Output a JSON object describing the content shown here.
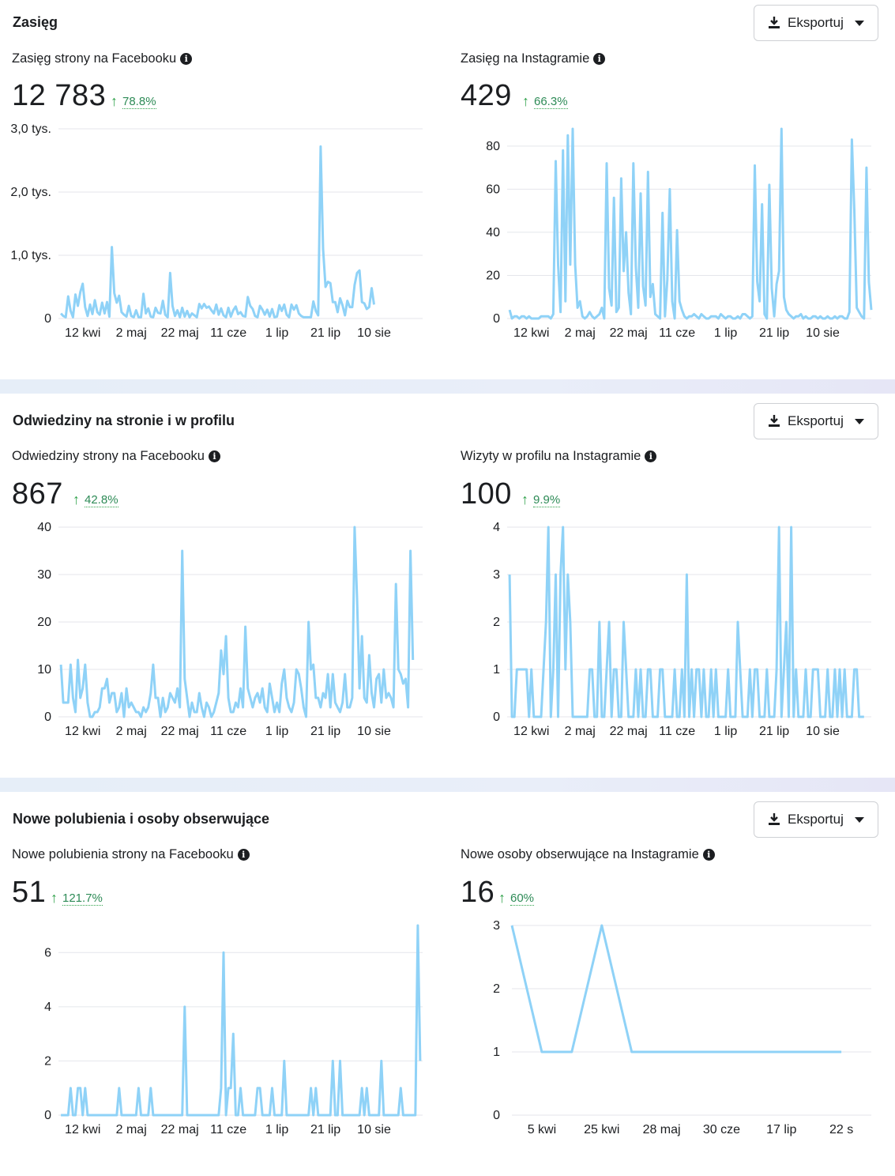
{
  "colors": {
    "line": "#8fd2f7",
    "grid": "#e4e6eb",
    "up": "#31a24c"
  },
  "icons": {
    "export": "download-icon",
    "info": "info-icon",
    "caret": "caret-down-icon",
    "trend": "arrow-up-icon"
  },
  "sections": [
    {
      "title": "Zasięg",
      "export_label": "Eksportuj",
      "metrics": [
        {
          "title": "Zasięg strony na Facebooku",
          "value": "12 783",
          "change": "78.8%"
        },
        {
          "title": "Zasięg na Instagramie",
          "value": "429",
          "change": "66.3%"
        }
      ]
    },
    {
      "title": "Odwiedziny na stronie i w profilu",
      "export_label": "Eksportuj",
      "metrics": [
        {
          "title": "Odwiedziny strony na Facebooku",
          "value": "867",
          "change": "42.8%"
        },
        {
          "title": "Wizyty w profilu na Instagramie",
          "value": "100",
          "change": "9.9%"
        }
      ]
    },
    {
      "title": "Nowe polubienia i osoby obserwujące",
      "export_label": "Eksportuj",
      "metrics": [
        {
          "title": "Nowe polubienia strony na Facebooku",
          "value": "51",
          "change": "121.7%"
        },
        {
          "title": "Nowe osoby obserwujące na Instagramie",
          "value": "16",
          "change": "60%"
        }
      ]
    }
  ],
  "chart_data": [
    {
      "type": "line",
      "title": "Zasięg strony na Facebooku",
      "ylim": [
        0,
        3000
      ],
      "yticks": [
        0,
        1000,
        2000,
        3000
      ],
      "ytick_labels": [
        "0",
        "1,0 tys.",
        "2,0 tys.",
        "3,0 tys."
      ],
      "xlim": [
        0,
        150
      ],
      "xticks": [
        10,
        30,
        50,
        70,
        90,
        110,
        130
      ],
      "xtick_labels": [
        "12 kwi",
        "2 maj",
        "22 maj",
        "11 cze",
        "1 lip",
        "21 lip",
        "10 sie"
      ],
      "grid": true,
      "values": [
        80,
        40,
        20,
        350,
        120,
        20,
        380,
        200,
        420,
        550,
        180,
        40,
        220,
        70,
        290,
        100,
        60,
        250,
        80,
        260,
        30,
        1130,
        400,
        250,
        360,
        100,
        60,
        30,
        200,
        40,
        20,
        130,
        20,
        20,
        390,
        80,
        160,
        30,
        20,
        170,
        90,
        80,
        280,
        60,
        20,
        720,
        200,
        40,
        130,
        20,
        170,
        30,
        120,
        20,
        80,
        50,
        20,
        230,
        160,
        230,
        170,
        190,
        130,
        80,
        220,
        60,
        160,
        50,
        20,
        170,
        30,
        130,
        190,
        70,
        100,
        40,
        30,
        340,
        200,
        150,
        40,
        20,
        200,
        140,
        60,
        140,
        30,
        150,
        20,
        30,
        210,
        120,
        220,
        60,
        20,
        220,
        140,
        210,
        80,
        40,
        20,
        20,
        20,
        20,
        270,
        120,
        50,
        2720,
        1100,
        500,
        580,
        560,
        260,
        260,
        100,
        320,
        210,
        50,
        280,
        180,
        180,
        530,
        720,
        760,
        260,
        240,
        150,
        180,
        480,
        220
      ],
      "xstart": 1,
      "xstep": 1
    },
    {
      "type": "line",
      "title": "Zasięg na Instagramie",
      "ylim": [
        0,
        88
      ],
      "yticks": [
        0,
        20,
        40,
        60,
        80
      ],
      "ytick_labels": [
        "0",
        "20",
        "40",
        "60",
        "80"
      ],
      "xlim": [
        0,
        150
      ],
      "xticks": [
        10,
        30,
        50,
        70,
        90,
        110,
        130
      ],
      "xtick_labels": [
        "12 kwi",
        "2 maj",
        "22 maj",
        "11 cze",
        "1 lip",
        "21 lip",
        "10 sie"
      ],
      "grid": true,
      "values": [
        4,
        0,
        1,
        1,
        0,
        1,
        1,
        0,
        1,
        0,
        0,
        0,
        0,
        1,
        1,
        1,
        1,
        0,
        2,
        73,
        25,
        3,
        78,
        8,
        85,
        25,
        88,
        25,
        5,
        8,
        1,
        0,
        1,
        3,
        1,
        0,
        1,
        2,
        5,
        0,
        72,
        14,
        6,
        56,
        3,
        5,
        65,
        22,
        40,
        12,
        2,
        72,
        24,
        5,
        58,
        15,
        6,
        68,
        10,
        16,
        2,
        1,
        0,
        49,
        1,
        18,
        60,
        8,
        0,
        41,
        8,
        4,
        1,
        0,
        1,
        1,
        2,
        1,
        0,
        2,
        1,
        0,
        0,
        1,
        1,
        1,
        0,
        2,
        1,
        0,
        1,
        1,
        0,
        0,
        1,
        0,
        2,
        2,
        1,
        0,
        1,
        71,
        17,
        8,
        53,
        2,
        0,
        62,
        14,
        1,
        16,
        22,
        88,
        10,
        4,
        2,
        1,
        0,
        1,
        1,
        2,
        0,
        1,
        0,
        0,
        1,
        1,
        0,
        1,
        0,
        0,
        1,
        0,
        0,
        1,
        0,
        1,
        1,
        0,
        0,
        3,
        83,
        50,
        5,
        3,
        1,
        0,
        70,
        17,
        4
      ],
      "xstart": 1,
      "xstep": 1
    },
    {
      "type": "line",
      "title": "Odwiedziny strony na Facebooku",
      "ylim": [
        0,
        40
      ],
      "yticks": [
        0,
        10,
        20,
        30,
        40
      ],
      "ytick_labels": [
        "0",
        "10",
        "20",
        "30",
        "40"
      ],
      "xlim": [
        0,
        150
      ],
      "xticks": [
        10,
        30,
        50,
        70,
        90,
        110,
        130
      ],
      "xtick_labels": [
        "12 kwi",
        "2 maj",
        "22 maj",
        "11 cze",
        "1 lip",
        "21 lip",
        "10 sie"
      ],
      "grid": true,
      "values": [
        11,
        3,
        3,
        3,
        11,
        4,
        1,
        12,
        4,
        6,
        11,
        3,
        0,
        0,
        1,
        1,
        2,
        6,
        6,
        8,
        3,
        5,
        5,
        1,
        2,
        5,
        0,
        6,
        2,
        3,
        2,
        1,
        1,
        0,
        2,
        1,
        2,
        5,
        11,
        4,
        4,
        0,
        4,
        1,
        2,
        5,
        4,
        3,
        6,
        2,
        35,
        8,
        4,
        0,
        3,
        1,
        1,
        5,
        2,
        0,
        3,
        2,
        0,
        1,
        3,
        5,
        14,
        9,
        17,
        4,
        1,
        1,
        3,
        2,
        6,
        2,
        19,
        6,
        4,
        2,
        4,
        5,
        3,
        6,
        2,
        1,
        7,
        4,
        1,
        3,
        1,
        7,
        10,
        4,
        2,
        1,
        3,
        10,
        9,
        6,
        2,
        0,
        20,
        10,
        11,
        4,
        4,
        2,
        5,
        4,
        9,
        2,
        9,
        3,
        2,
        1,
        3,
        9,
        2,
        2,
        4,
        40,
        25,
        6,
        17,
        4,
        3,
        13,
        5,
        2,
        8,
        9,
        3,
        10,
        4,
        5,
        4,
        2,
        28,
        10,
        9,
        7,
        8,
        2,
        35,
        12
      ],
      "xstart": 1,
      "xstep": 1
    },
    {
      "type": "line",
      "title": "Wizyty w profilu na Instagramie",
      "ylim": [
        0,
        4
      ],
      "yticks": [
        0,
        1,
        2,
        3,
        4
      ],
      "ytick_labels": [
        "0",
        "1",
        "2",
        "3",
        "4"
      ],
      "xlim": [
        0,
        150
      ],
      "xticks": [
        10,
        30,
        50,
        70,
        90,
        110,
        130
      ],
      "xtick_labels": [
        "12 kwi",
        "2 maj",
        "22 maj",
        "11 cze",
        "1 lip",
        "21 lip",
        "10 sie"
      ],
      "grid": true,
      "values": [
        3,
        0,
        0,
        1,
        1,
        1,
        1,
        1,
        0,
        1,
        0,
        0,
        0,
        0,
        1,
        2,
        4,
        0,
        1,
        3,
        0,
        3,
        4,
        1,
        3,
        2,
        0,
        0,
        0,
        0,
        0,
        0,
        0,
        1,
        1,
        0,
        0,
        2,
        0,
        0,
        1,
        2,
        0,
        1,
        1,
        0,
        0,
        2,
        1,
        0,
        0,
        0,
        1,
        0,
        1,
        0,
        0,
        1,
        1,
        0,
        0,
        0,
        1,
        1,
        0,
        0,
        0,
        0,
        1,
        0,
        0,
        1,
        0,
        3,
        0,
        1,
        0,
        1,
        1,
        0,
        1,
        0,
        0,
        1,
        0,
        1,
        0,
        0,
        0,
        0,
        1,
        0,
        0,
        0,
        2,
        1,
        0,
        0,
        0,
        1,
        0,
        1,
        1,
        0,
        0,
        0,
        1,
        0,
        0,
        0,
        1,
        4,
        0,
        1,
        2,
        0,
        4,
        0,
        1,
        0,
        0,
        0,
        1,
        0,
        0,
        1,
        1,
        1,
        0,
        0,
        0,
        1,
        0,
        0,
        1,
        0,
        1,
        0,
        1,
        0,
        0,
        0,
        1,
        1,
        0,
        0,
        0
      ],
      "xstart": 1,
      "xstep": 1
    },
    {
      "type": "line",
      "title": "Nowe polubienia strony na Facebooku",
      "ylim": [
        0,
        7
      ],
      "yticks": [
        0,
        2,
        4,
        6
      ],
      "ytick_labels": [
        "0",
        "2",
        "4",
        "6"
      ],
      "xlim": [
        0,
        150
      ],
      "xticks": [
        10,
        30,
        50,
        70,
        90,
        110,
        130
      ],
      "xtick_labels": [
        "12 kwi",
        "2 maj",
        "22 maj",
        "11 cze",
        "1 lip",
        "21 lip",
        "10 sie"
      ],
      "grid": true,
      "values": [
        0,
        0,
        0,
        0,
        1,
        0,
        0,
        1,
        1,
        0,
        1,
        0,
        0,
        0,
        0,
        0,
        0,
        0,
        0,
        0,
        0,
        0,
        0,
        0,
        1,
        0,
        0,
        0,
        0,
        0,
        0,
        0,
        1,
        0,
        0,
        0,
        0,
        1,
        0,
        0,
        0,
        0,
        0,
        0,
        0,
        0,
        0,
        0,
        0,
        0,
        0,
        4,
        0,
        0,
        0,
        0,
        0,
        0,
        0,
        0,
        0,
        0,
        0,
        0,
        0,
        0,
        1,
        6,
        0,
        1,
        1,
        3,
        0,
        0,
        1,
        0,
        0,
        0,
        0,
        0,
        0,
        1,
        1,
        0,
        0,
        0,
        0,
        1,
        0,
        0,
        0,
        0,
        2,
        0,
        0,
        0,
        0,
        0,
        0,
        0,
        0,
        0,
        0,
        1,
        0,
        1,
        0,
        0,
        0,
        0,
        0,
        0,
        2,
        0,
        0,
        2,
        0,
        0,
        0,
        0,
        0,
        0,
        0,
        0,
        1,
        0,
        1,
        0,
        0,
        0,
        0,
        0,
        2,
        0,
        0,
        0,
        0,
        0,
        0,
        0,
        1,
        0,
        0,
        0,
        0,
        0,
        0,
        7,
        2
      ],
      "xstart": 1,
      "xstep": 1
    },
    {
      "type": "line",
      "title": "Nowe osoby obserwujące na Instagramie",
      "ylim": [
        0,
        3
      ],
      "yticks": [
        0,
        1,
        2,
        3
      ],
      "ytick_labels": [
        "0",
        "1",
        "2",
        "3"
      ],
      "xlim": [
        0,
        12
      ],
      "xticks": [
        1,
        3,
        5,
        7,
        9,
        11
      ],
      "xtick_labels": [
        "5 kwi",
        "25 kwi",
        "28 maj",
        "30 cze",
        "17 lip",
        "22 s"
      ],
      "grid": true,
      "values": [
        3,
        1,
        1,
        3,
        1,
        1,
        1,
        1,
        1,
        1,
        1,
        1
      ],
      "xstart": 0,
      "xstep": 1
    }
  ]
}
